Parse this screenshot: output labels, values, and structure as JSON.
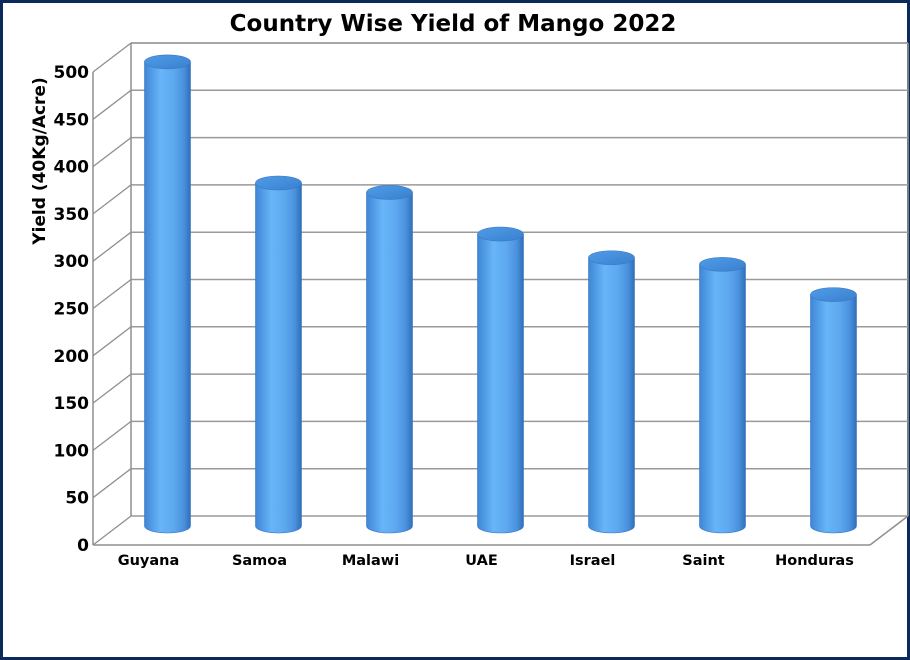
{
  "chart_data": {
    "type": "bar",
    "title": "Country Wise Yield of Mango 2022",
    "xlabel": "",
    "ylabel": "Yield (40Kg/Acre)",
    "ylim": [
      0,
      500
    ],
    "yticks": [
      0,
      50,
      100,
      150,
      200,
      250,
      300,
      350,
      400,
      450,
      500
    ],
    "categories": [
      "Guyana",
      "Samoa",
      "Malawi",
      "UAE",
      "Israel",
      "Saint",
      "Honduras"
    ],
    "values": [
      480,
      352,
      342,
      298,
      273,
      266,
      234
    ],
    "grid": true,
    "legend": "none",
    "bar_color": "#5aa8f0",
    "frame_color": "#0b2a5b"
  }
}
